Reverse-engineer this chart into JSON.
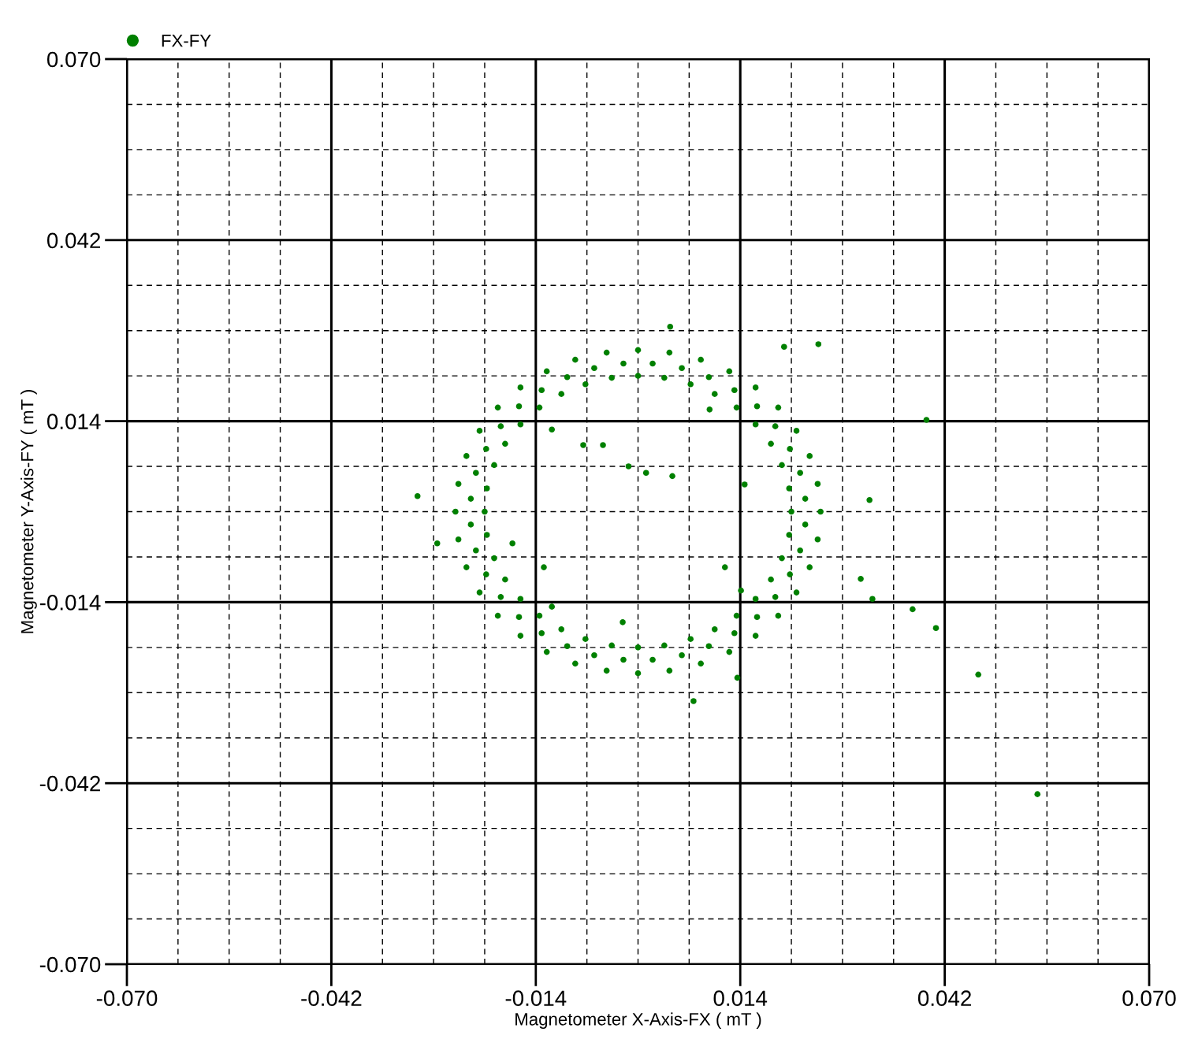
{
  "chart_data": {
    "type": "scatter",
    "xlabel": "Magnetometer X-Axis-FX ( mT )",
    "ylabel": "Magnetometer Y-Axis-FY ( mT )",
    "xlim": [
      -0.07,
      0.07
    ],
    "ylim": [
      -0.07,
      0.07
    ],
    "xticks": [
      {
        "value": -0.07,
        "label": "-0.070"
      },
      {
        "value": -0.042,
        "label": "-0.042"
      },
      {
        "value": -0.014,
        "label": "-0.014"
      },
      {
        "value": 0.014,
        "label": "0.014"
      },
      {
        "value": 0.042,
        "label": "0.042"
      },
      {
        "value": 0.07,
        "label": "0.070"
      }
    ],
    "yticks": [
      {
        "value": -0.07,
        "label": "-0.070"
      },
      {
        "value": -0.042,
        "label": "-0.042"
      },
      {
        "value": -0.014,
        "label": "-0.014"
      },
      {
        "value": 0.014,
        "label": "0.014"
      },
      {
        "value": 0.042,
        "label": "0.042"
      },
      {
        "value": 0.07,
        "label": "0.070"
      }
    ],
    "grid": true,
    "legend": "top left",
    "marker": "circle",
    "series": [
      {
        "name": "FX-FY",
        "color": "#008000",
        "x": [
          0.021,
          0.0207,
          0.0197,
          0.0182,
          0.0161,
          0.0135,
          0.0105,
          0.0072,
          0.0036,
          0,
          -0.0036,
          -0.0072,
          -0.0105,
          -0.0135,
          -0.0161,
          -0.0182,
          -0.0197,
          -0.0207,
          -0.021,
          -0.0207,
          -0.0197,
          -0.0182,
          -0.0161,
          -0.0135,
          -0.0105,
          -0.0072,
          -0.0036,
          0,
          0.0036,
          0.0072,
          0.0105,
          0.0135,
          0.0161,
          0.0182,
          0.0197,
          0.0207,
          0.025,
          0.0246,
          0.0235,
          0.0217,
          0.0192,
          0.0161,
          0.0125,
          0.0086,
          0.0043,
          0,
          -0.0043,
          -0.0086,
          -0.0125,
          -0.0161,
          -0.0192,
          -0.0217,
          -0.0235,
          -0.0246,
          -0.025,
          -0.0246,
          -0.0235,
          -0.0217,
          -0.0192,
          -0.0161,
          -0.0125,
          -0.0086,
          -0.0043,
          0,
          0.0043,
          0.0086,
          0.0125,
          0.0161,
          0.0192,
          0.0217,
          0.0235,
          0.0246,
          0.0229,
          0.0222,
          0.0208,
          0.0188,
          0.0163,
          0.0132,
          0.0097,
          0.006,
          0.002,
          -0.002,
          -0.006,
          -0.0097,
          -0.0132,
          -0.0163,
          -0.0188,
          -0.0208,
          -0.0222,
          -0.0229,
          -0.0229,
          -0.0222,
          -0.0208,
          -0.0188,
          -0.0163,
          -0.0132,
          -0.0097,
          -0.006,
          -0.002,
          0.002,
          0.006,
          0.0097,
          0.0132,
          0.0163,
          0.0188,
          0.0208,
          0.0222,
          0.0229,
          0.0395,
          0.0247,
          0.02,
          0.0376,
          0.0408,
          0.0466,
          0.0547,
          0.0321,
          0.0317,
          0.0305,
          0.0011,
          0.0047,
          -0.0013,
          -0.0118,
          -0.0075,
          -0.0048,
          -0.0172,
          -0.0129,
          -0.0118,
          -0.0021,
          0.0076,
          0.0136,
          0.0098,
          0.0146,
          0.0119,
          0.0141,
          -0.0302,
          -0.0275,
          0.0044
        ],
        "values": [
          0,
          0.0036,
          0.0072,
          0.0105,
          0.0135,
          0.0161,
          0.0182,
          0.0197,
          0.0207,
          0.021,
          0.0207,
          0.0197,
          0.0182,
          0.0161,
          0.0135,
          0.0105,
          0.0072,
          0.0036,
          0,
          -0.0036,
          -0.0072,
          -0.0105,
          -0.0135,
          -0.0161,
          -0.0182,
          -0.0197,
          -0.0207,
          -0.021,
          -0.0207,
          -0.0197,
          -0.0182,
          -0.0161,
          -0.0135,
          -0.0105,
          -0.0072,
          -0.0036,
          0,
          0.0043,
          0.0086,
          0.0125,
          0.0161,
          0.0192,
          0.0217,
          0.0235,
          0.0246,
          0.025,
          0.0246,
          0.0235,
          0.0217,
          0.0192,
          0.0161,
          0.0125,
          0.0086,
          0.0043,
          0,
          -0.0043,
          -0.0086,
          -0.0125,
          -0.0161,
          -0.0192,
          -0.0217,
          -0.0235,
          -0.0246,
          -0.025,
          -0.0246,
          -0.0235,
          -0.0217,
          -0.0192,
          -0.0161,
          -0.0125,
          -0.0086,
          -0.0043,
          0.002,
          0.006,
          0.0097,
          0.0132,
          0.0163,
          0.0188,
          0.0208,
          0.0222,
          0.0229,
          0.0229,
          0.0222,
          0.0208,
          0.0188,
          0.0163,
          0.0132,
          0.0097,
          0.006,
          0.002,
          -0.002,
          -0.006,
          -0.0097,
          -0.0132,
          -0.0163,
          -0.0188,
          -0.0208,
          -0.0222,
          -0.0229,
          -0.0229,
          -0.0222,
          -0.0208,
          -0.0188,
          -0.0163,
          -0.0132,
          -0.0097,
          -0.006,
          -0.002,
          0.0142,
          0.0259,
          0.0255,
          -0.0151,
          -0.018,
          -0.0252,
          -0.0437,
          -0.0135,
          0.0018,
          -0.0104,
          0.006,
          0.0055,
          0.007,
          0.0127,
          0.0103,
          0.0103,
          -0.0049,
          -0.0086,
          -0.0147,
          -0.0171,
          -0.0293,
          -0.0257,
          0.0158,
          0.0042,
          -0.0086,
          -0.0122,
          0.0024,
          -0.0049,
          0.0286
        ]
      }
    ]
  }
}
